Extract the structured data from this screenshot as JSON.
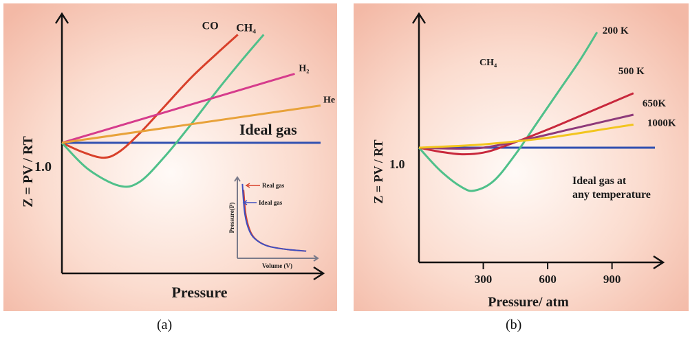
{
  "chart_data": [
    {
      "type": "line",
      "panel_label": "(a)",
      "xlabel": "Pressure",
      "ylabel": "Z = PV / RT",
      "y_reference": "1.0",
      "x_range": [
        0,
        10
      ],
      "y_range": [
        0.55,
        1.6
      ],
      "series": [
        {
          "name": "Ideal gas",
          "color": "#2f4fb0",
          "x": [
            0,
            10
          ],
          "y": [
            1.0,
            1.0
          ]
        },
        {
          "name": "CO",
          "color": "#d8402a",
          "x": [
            0,
            0.8,
            1.6,
            2.2,
            3.0,
            4.0,
            5.0,
            6.0,
            6.8
          ],
          "y": [
            1.0,
            0.95,
            0.92,
            0.95,
            1.05,
            1.2,
            1.35,
            1.48,
            1.58
          ]
        },
        {
          "name": "CH₄",
          "color": "#4fc08a",
          "x": [
            0,
            1.0,
            2.2,
            3.0,
            4.0,
            5.0,
            6.0,
            7.0,
            7.8
          ],
          "y": [
            1.0,
            0.86,
            0.77,
            0.79,
            0.93,
            1.1,
            1.28,
            1.45,
            1.58
          ]
        },
        {
          "name": "H₂",
          "color": "#d63c8c",
          "x": [
            0,
            9.0
          ],
          "y": [
            1.0,
            1.37
          ]
        },
        {
          "name": "He",
          "color": "#e8a23a",
          "x": [
            0,
            10
          ],
          "y": [
            1.0,
            1.2
          ]
        }
      ],
      "inset": {
        "xlabel": "Volume (V)",
        "ylabel": "Pressure(P)",
        "series": [
          {
            "name": "Real gas",
            "color": "#d8402a",
            "x": [
              0.4,
              0.6,
              1.0,
              1.6,
              2.5,
              4.0,
              5.5
            ],
            "y": [
              3.3,
              2.0,
              1.15,
              0.72,
              0.46,
              0.3,
              0.22
            ]
          },
          {
            "name": "Ideal gas",
            "color": "#3f4fc0",
            "x": [
              0.3,
              0.5,
              0.9,
              1.5,
              2.4,
              4.0,
              5.5
            ],
            "y": [
              3.6,
              2.1,
              1.2,
              0.75,
              0.47,
              0.3,
              0.22
            ]
          }
        ]
      }
    },
    {
      "type": "line",
      "panel_label": "(b)",
      "title": "CH₄",
      "xlabel": "Pressure/ atm",
      "ylabel": "Z = PV / RT",
      "y_reference": "1.0",
      "x_range": [
        0,
        1100
      ],
      "x_ticks": [
        300,
        600,
        900
      ],
      "y_range": [
        0.5,
        1.75
      ],
      "annotation": [
        "Ideal gas at",
        "any temperature"
      ],
      "series": [
        {
          "name": "Ideal gas at any temperature",
          "color": "#2f4fb0",
          "x": [
            0,
            1100
          ],
          "y": [
            1.0,
            1.0
          ]
        },
        {
          "name": "200 K",
          "color": "#4fc08a",
          "x": [
            0,
            100,
            200,
            260,
            350,
            450,
            550,
            650,
            750,
            830
          ],
          "y": [
            1.0,
            0.86,
            0.76,
            0.74,
            0.8,
            0.96,
            1.15,
            1.34,
            1.53,
            1.7
          ]
        },
        {
          "name": "500 K",
          "color": "#c8283c",
          "x": [
            0,
            100,
            200,
            300,
            400,
            600,
            800,
            1000
          ],
          "y": [
            1.0,
            0.975,
            0.96,
            0.97,
            1.01,
            1.11,
            1.22,
            1.33
          ]
        },
        {
          "name": "650K",
          "color": "#8e3a7a",
          "x": [
            0,
            150,
            300,
            500,
            700,
            900,
            1000
          ],
          "y": [
            1.0,
            0.995,
            1.0,
            1.05,
            1.11,
            1.17,
            1.2
          ]
        },
        {
          "name": "1000K",
          "color": "#f2c51e",
          "x": [
            0,
            300,
            600,
            900,
            1000
          ],
          "y": [
            1.0,
            1.02,
            1.06,
            1.12,
            1.14
          ]
        }
      ]
    }
  ]
}
